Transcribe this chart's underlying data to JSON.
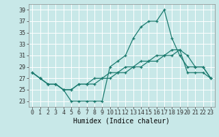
{
  "xlabel": "Humidex (Indice chaleur)",
  "background_color": "#c8e8e8",
  "grid_color": "#ffffff",
  "line_color": "#1a7a6e",
  "xlim": [
    -0.5,
    23.5
  ],
  "ylim": [
    22.0,
    40.0
  ],
  "yticks": [
    23,
    25,
    27,
    29,
    31,
    33,
    35,
    37,
    39
  ],
  "xticks": [
    0,
    1,
    2,
    3,
    4,
    5,
    6,
    7,
    8,
    9,
    10,
    11,
    12,
    13,
    14,
    15,
    16,
    17,
    18,
    19,
    20,
    21,
    22,
    23
  ],
  "line1_x": [
    0,
    1,
    2,
    3,
    4,
    5,
    6,
    7,
    8,
    9,
    10,
    11,
    12,
    13,
    14,
    15,
    16,
    17,
    18,
    19,
    20,
    21,
    22,
    23
  ],
  "line1_y": [
    28,
    27,
    26,
    26,
    25,
    23,
    23,
    23,
    23,
    23,
    29,
    30,
    31,
    34,
    36,
    37,
    37,
    39,
    34,
    31,
    29,
    29,
    29,
    27
  ],
  "line2_x": [
    0,
    1,
    2,
    3,
    4,
    5,
    6,
    7,
    8,
    9,
    10,
    11,
    12,
    13,
    14,
    15,
    16,
    17,
    18,
    19,
    20,
    21,
    22,
    23
  ],
  "line2_y": [
    28,
    27,
    26,
    26,
    25,
    25,
    26,
    26,
    27,
    27,
    28,
    28,
    29,
    29,
    30,
    30,
    31,
    31,
    32,
    32,
    28,
    28,
    28,
    27
  ],
  "line3_x": [
    0,
    1,
    2,
    3,
    4,
    5,
    6,
    7,
    8,
    9,
    10,
    11,
    12,
    13,
    14,
    15,
    16,
    17,
    18,
    19,
    20,
    21,
    22,
    23
  ],
  "line3_y": [
    28,
    27,
    26,
    26,
    25,
    25,
    26,
    26,
    26,
    27,
    27,
    28,
    28,
    29,
    29,
    30,
    30,
    31,
    31,
    32,
    31,
    29,
    29,
    27
  ],
  "tick_fontsize": 6,
  "xlabel_fontsize": 7
}
